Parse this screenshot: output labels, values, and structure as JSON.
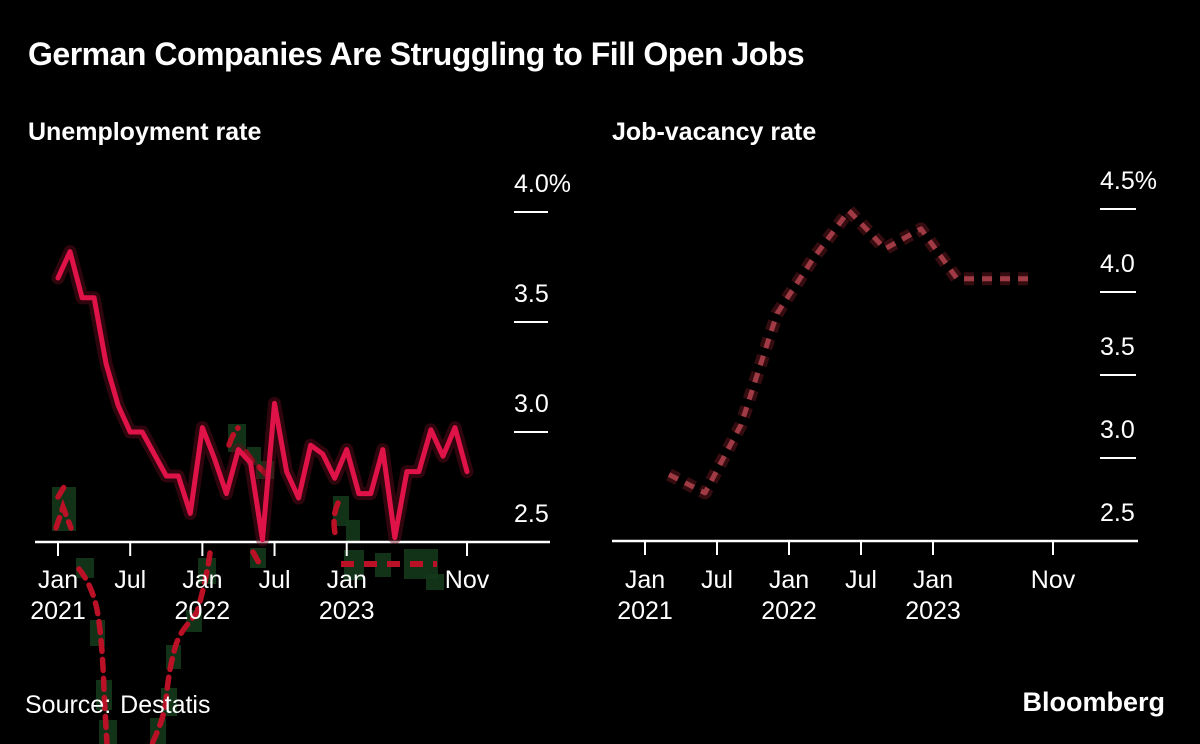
{
  "header": {
    "title": "German Companies Are Struggling to Fill Open Jobs"
  },
  "footer": {
    "source_label": "Source:",
    "source_value": "Destatis",
    "logo": "Bloomberg"
  },
  "colors": {
    "background": "#000000",
    "text": "#ffffff",
    "axis": "#ffffff",
    "unemployment_line": "#e01348",
    "vacancy_line": "#a03b45",
    "unemployment_halo": "rgba(105,12,30,0.45)",
    "vacancy_halo": "rgba(62,14,18,0.85)",
    "artifact_red": "#bb1126",
    "artifact_green": "#14381a"
  },
  "chart_data": [
    {
      "type": "line",
      "title": "Unemployment rate",
      "unit": "%",
      "line_style": "solid",
      "frequency": "monthly",
      "x_range": "Jan 2021 - Nov 2023",
      "ylim": [
        2.5,
        4.0
      ],
      "grid": false,
      "legend": "none",
      "y_ticks": [
        {
          "v": 4.0,
          "label": "4.0%"
        },
        {
          "v": 3.5,
          "label": "3.5"
        },
        {
          "v": 3.0,
          "label": "3.0"
        },
        {
          "v": 2.5,
          "label": "2.5",
          "baseline": true
        }
      ],
      "x_ticks": [
        {
          "m": 0,
          "label": "Jan",
          "year": "2021"
        },
        {
          "m": 6,
          "label": "Jul"
        },
        {
          "m": 12,
          "label": "Jan",
          "year": "2022"
        },
        {
          "m": 18,
          "label": "Jul"
        },
        {
          "m": 24,
          "label": "Jan",
          "year": "2023"
        },
        {
          "m": 34,
          "label": "Nov"
        }
      ],
      "series": {
        "name": "Unemployment rate",
        "x_months": [
          0,
          1,
          2,
          3,
          4,
          5,
          6,
          7,
          8,
          9,
          10,
          11,
          12,
          13,
          14,
          15,
          16,
          17,
          18,
          19,
          20,
          21,
          22,
          23,
          24,
          25,
          26,
          27,
          28,
          29,
          30,
          31,
          32,
          33,
          34
        ],
        "values": [
          3.7,
          3.82,
          3.61,
          3.61,
          3.31,
          3.12,
          3.0,
          3.0,
          2.9,
          2.8,
          2.8,
          2.63,
          3.02,
          2.88,
          2.72,
          2.92,
          2.86,
          2.51,
          3.13,
          2.82,
          2.7,
          2.94,
          2.9,
          2.79,
          2.92,
          2.72,
          2.72,
          2.92,
          2.52,
          2.82,
          2.82,
          3.01,
          2.89,
          3.02,
          2.82
        ]
      }
    },
    {
      "type": "line",
      "title": "Job-vacancy rate",
      "unit": "%",
      "line_style": "dashed",
      "frequency": "quarterly",
      "x_range": "Q1 2021 - Q3 2023",
      "ylim": [
        2.5,
        4.5
      ],
      "grid": false,
      "legend": "none",
      "y_ticks": [
        {
          "v": 4.5,
          "label": "4.5%"
        },
        {
          "v": 4.0,
          "label": "4.0"
        },
        {
          "v": 3.5,
          "label": "3.5"
        },
        {
          "v": 3.0,
          "label": "3.0"
        },
        {
          "v": 2.5,
          "label": "2.5",
          "baseline": true
        }
      ],
      "x_ticks": [
        {
          "m": 0,
          "label": "Jan",
          "year": "2021"
        },
        {
          "m": 6,
          "label": "Jul"
        },
        {
          "m": 12,
          "label": "Jan",
          "year": "2022"
        },
        {
          "m": 18,
          "label": "Jul"
        },
        {
          "m": 24,
          "label": "Jan",
          "year": "2023"
        },
        {
          "m": 34,
          "label": "Nov"
        }
      ],
      "series": {
        "name": "Job-vacancy rate",
        "x_months": [
          2,
          5,
          8,
          11,
          14,
          17,
          20,
          23,
          26,
          29,
          32
        ],
        "values": [
          2.9,
          2.79,
          3.2,
          3.87,
          4.2,
          4.49,
          4.26,
          4.38,
          4.08,
          4.08,
          4.08
        ]
      }
    }
  ]
}
